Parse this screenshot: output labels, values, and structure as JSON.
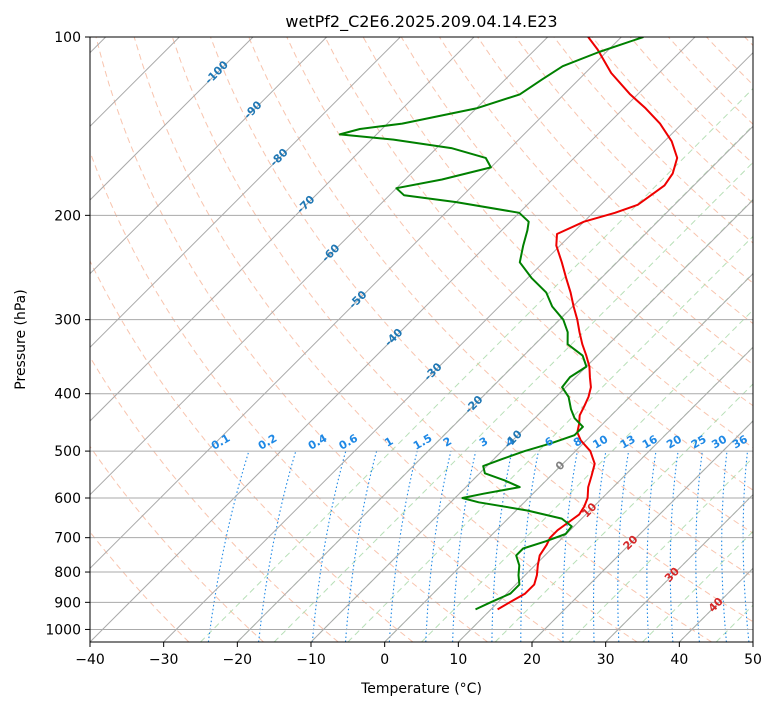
{
  "chart_data": {
    "type": "line",
    "title": "wetPf2_C2E6.2025.209.04.14.E23",
    "xlabel": "Temperature (°C)",
    "ylabel": "Pressure (hPa)",
    "xlim": [
      -40,
      50
    ],
    "ylim": [
      1050,
      100
    ],
    "y_scale": "log",
    "skew": 45,
    "x_ticks": [
      -40,
      -30,
      -20,
      -10,
      0,
      10,
      20,
      30,
      40,
      50
    ],
    "x_tick_labels": [
      "−40",
      "−30",
      "−20",
      "−10",
      "0",
      "10",
      "20",
      "30",
      "40",
      "50"
    ],
    "y_ticks": [
      100,
      200,
      300,
      400,
      500,
      600,
      700,
      800,
      900,
      1000
    ],
    "y_tick_labels": [
      "100",
      "200",
      "300",
      "400",
      "500",
      "600",
      "700",
      "800",
      "900",
      "1000"
    ],
    "grid": true,
    "colors": {
      "temperature": "#ee0000",
      "dewpoint": "#008000",
      "isotherm": "#aaaaaa",
      "dry_adiabat": "#f4a582",
      "moist_adiabat": "#9fd49f",
      "mixing_ratio": "#1e88e5",
      "isotherm_label": "#1f77b4",
      "dry_adiabat_label": "#d62728",
      "dry_adiabat_zero_label": "#808080",
      "mixing_label": "#1e88e5"
    },
    "isotherm_labels": [
      {
        "text": "-100",
        "t": -100,
        "p": 115
      },
      {
        "text": "-90",
        "t": -90,
        "p": 133
      },
      {
        "text": "-80",
        "t": -80,
        "p": 160
      },
      {
        "text": "-70",
        "t": -70,
        "p": 192
      },
      {
        "text": "-60",
        "t": -60,
        "p": 232
      },
      {
        "text": "-50",
        "t": -50,
        "p": 278
      },
      {
        "text": "-40",
        "t": -40,
        "p": 322
      },
      {
        "text": "-30",
        "t": -30,
        "p": 368
      },
      {
        "text": "-20",
        "t": -20,
        "p": 418
      },
      {
        "text": "-10",
        "t": -10,
        "p": 478
      }
    ],
    "dry_adiabat_labels": [
      {
        "text": "0",
        "t": 0,
        "p": 530
      },
      {
        "text": "10",
        "t": 10,
        "p": 630
      },
      {
        "text": "20",
        "t": 20,
        "p": 715
      },
      {
        "text": "30",
        "t": 30,
        "p": 810
      },
      {
        "text": "40",
        "t": 40,
        "p": 910
      }
    ],
    "mixing_ratios": [
      {
        "text": "0.1",
        "w": 0.1
      },
      {
        "text": "0.2",
        "w": 0.2
      },
      {
        "text": "0.4",
        "w": 0.4
      },
      {
        "text": "0.6",
        "w": 0.6
      },
      {
        "text": "1",
        "w": 1
      },
      {
        "text": "1.5",
        "w": 1.5
      },
      {
        "text": "2",
        "w": 2
      },
      {
        "text": "3",
        "w": 3
      },
      {
        "text": "4",
        "w": 4
      },
      {
        "text": "6",
        "w": 6
      },
      {
        "text": "8",
        "w": 8
      },
      {
        "text": "10",
        "w": 10
      },
      {
        "text": "13",
        "w": 13
      },
      {
        "text": "16",
        "w": 16
      },
      {
        "text": "20",
        "w": 20
      },
      {
        "text": "25",
        "w": 25
      },
      {
        "text": "30",
        "w": 30
      },
      {
        "text": "36",
        "w": 36
      }
    ],
    "series": [
      {
        "key": "temperature",
        "points": [
          [
            925,
            10.9
          ],
          [
            900,
            11.6
          ],
          [
            870,
            12.5
          ],
          [
            840,
            12.5
          ],
          [
            810,
            11.6
          ],
          [
            780,
            10.4
          ],
          [
            750,
            9.3
          ],
          [
            720,
            8.8
          ],
          [
            700,
            8.3
          ],
          [
            680,
            8.3
          ],
          [
            660,
            8.7
          ],
          [
            640,
            9.1
          ],
          [
            620,
            8.7
          ],
          [
            600,
            8.0
          ],
          [
            575,
            6.6
          ],
          [
            550,
            5.5
          ],
          [
            525,
            4.3
          ],
          [
            500,
            2.0
          ],
          [
            480,
            -0.7
          ],
          [
            465,
            -2.3
          ],
          [
            450,
            -3.2
          ],
          [
            435,
            -4.3
          ],
          [
            420,
            -4.9
          ],
          [
            405,
            -5.6
          ],
          [
            390,
            -6.6
          ],
          [
            375,
            -8.1
          ],
          [
            360,
            -9.6
          ],
          [
            345,
            -11.5
          ],
          [
            330,
            -13.6
          ],
          [
            315,
            -15.6
          ],
          [
            300,
            -17.6
          ],
          [
            285,
            -19.9
          ],
          [
            270,
            -22.2
          ],
          [
            255,
            -24.8
          ],
          [
            240,
            -27.5
          ],
          [
            225,
            -30.5
          ],
          [
            215,
            -32.0
          ],
          [
            205,
            -30.0
          ],
          [
            198,
            -27.0
          ],
          [
            192,
            -25.0
          ],
          [
            185,
            -24.5
          ],
          [
            178,
            -24.0
          ],
          [
            170,
            -24.5
          ],
          [
            160,
            -26.0
          ],
          [
            150,
            -29.0
          ],
          [
            140,
            -33.0
          ],
          [
            132,
            -37.0
          ],
          [
            125,
            -41.0
          ],
          [
            115,
            -46.5
          ],
          [
            105,
            -51.5
          ],
          [
            100,
            -54.5
          ]
        ]
      },
      {
        "key": "dewpoint",
        "points": [
          [
            925,
            7.9
          ],
          [
            900,
            9.0
          ],
          [
            870,
            10.5
          ],
          [
            840,
            10.5
          ],
          [
            810,
            9.1
          ],
          [
            780,
            7.9
          ],
          [
            750,
            6.1
          ],
          [
            730,
            6.1
          ],
          [
            710,
            8.2
          ],
          [
            690,
            9.9
          ],
          [
            670,
            9.7
          ],
          [
            650,
            7.3
          ],
          [
            630,
            1.6
          ],
          [
            610,
            -6.2
          ],
          [
            600,
            -9.0
          ],
          [
            590,
            -6.7
          ],
          [
            575,
            -2.7
          ],
          [
            560,
            -5.7
          ],
          [
            545,
            -9.3
          ],
          [
            530,
            -10.5
          ],
          [
            515,
            -8.8
          ],
          [
            500,
            -6.9
          ],
          [
            485,
            -4.4
          ],
          [
            470,
            -2.3
          ],
          [
            455,
            -2.3
          ],
          [
            440,
            -4.6
          ],
          [
            425,
            -6.3
          ],
          [
            405,
            -8.3
          ],
          [
            390,
            -10.5
          ],
          [
            375,
            -10.8
          ],
          [
            360,
            -10.0
          ],
          [
            345,
            -12.0
          ],
          [
            330,
            -15.6
          ],
          [
            315,
            -17.2
          ],
          [
            300,
            -19.5
          ],
          [
            285,
            -22.8
          ],
          [
            270,
            -25.5
          ],
          [
            255,
            -29.5
          ],
          [
            240,
            -33.2
          ],
          [
            225,
            -35.0
          ],
          [
            212,
            -36.5
          ],
          [
            205,
            -37.5
          ],
          [
            198,
            -40.0
          ],
          [
            190,
            -50.0
          ],
          [
            185,
            -58.0
          ],
          [
            180,
            -60.0
          ],
          [
            174,
            -55.0
          ],
          [
            166,
            -50.0
          ],
          [
            160,
            -52.0
          ],
          [
            154,
            -58.0
          ],
          [
            149,
            -67.0
          ],
          [
            146,
            -75.0
          ],
          [
            143,
            -73.0
          ],
          [
            140,
            -68.0
          ],
          [
            132,
            -60.0
          ],
          [
            125,
            -56.0
          ],
          [
            118,
            -55.0
          ],
          [
            112,
            -54.0
          ],
          [
            106,
            -51.0
          ],
          [
            100,
            -47.0
          ]
        ]
      }
    ]
  }
}
